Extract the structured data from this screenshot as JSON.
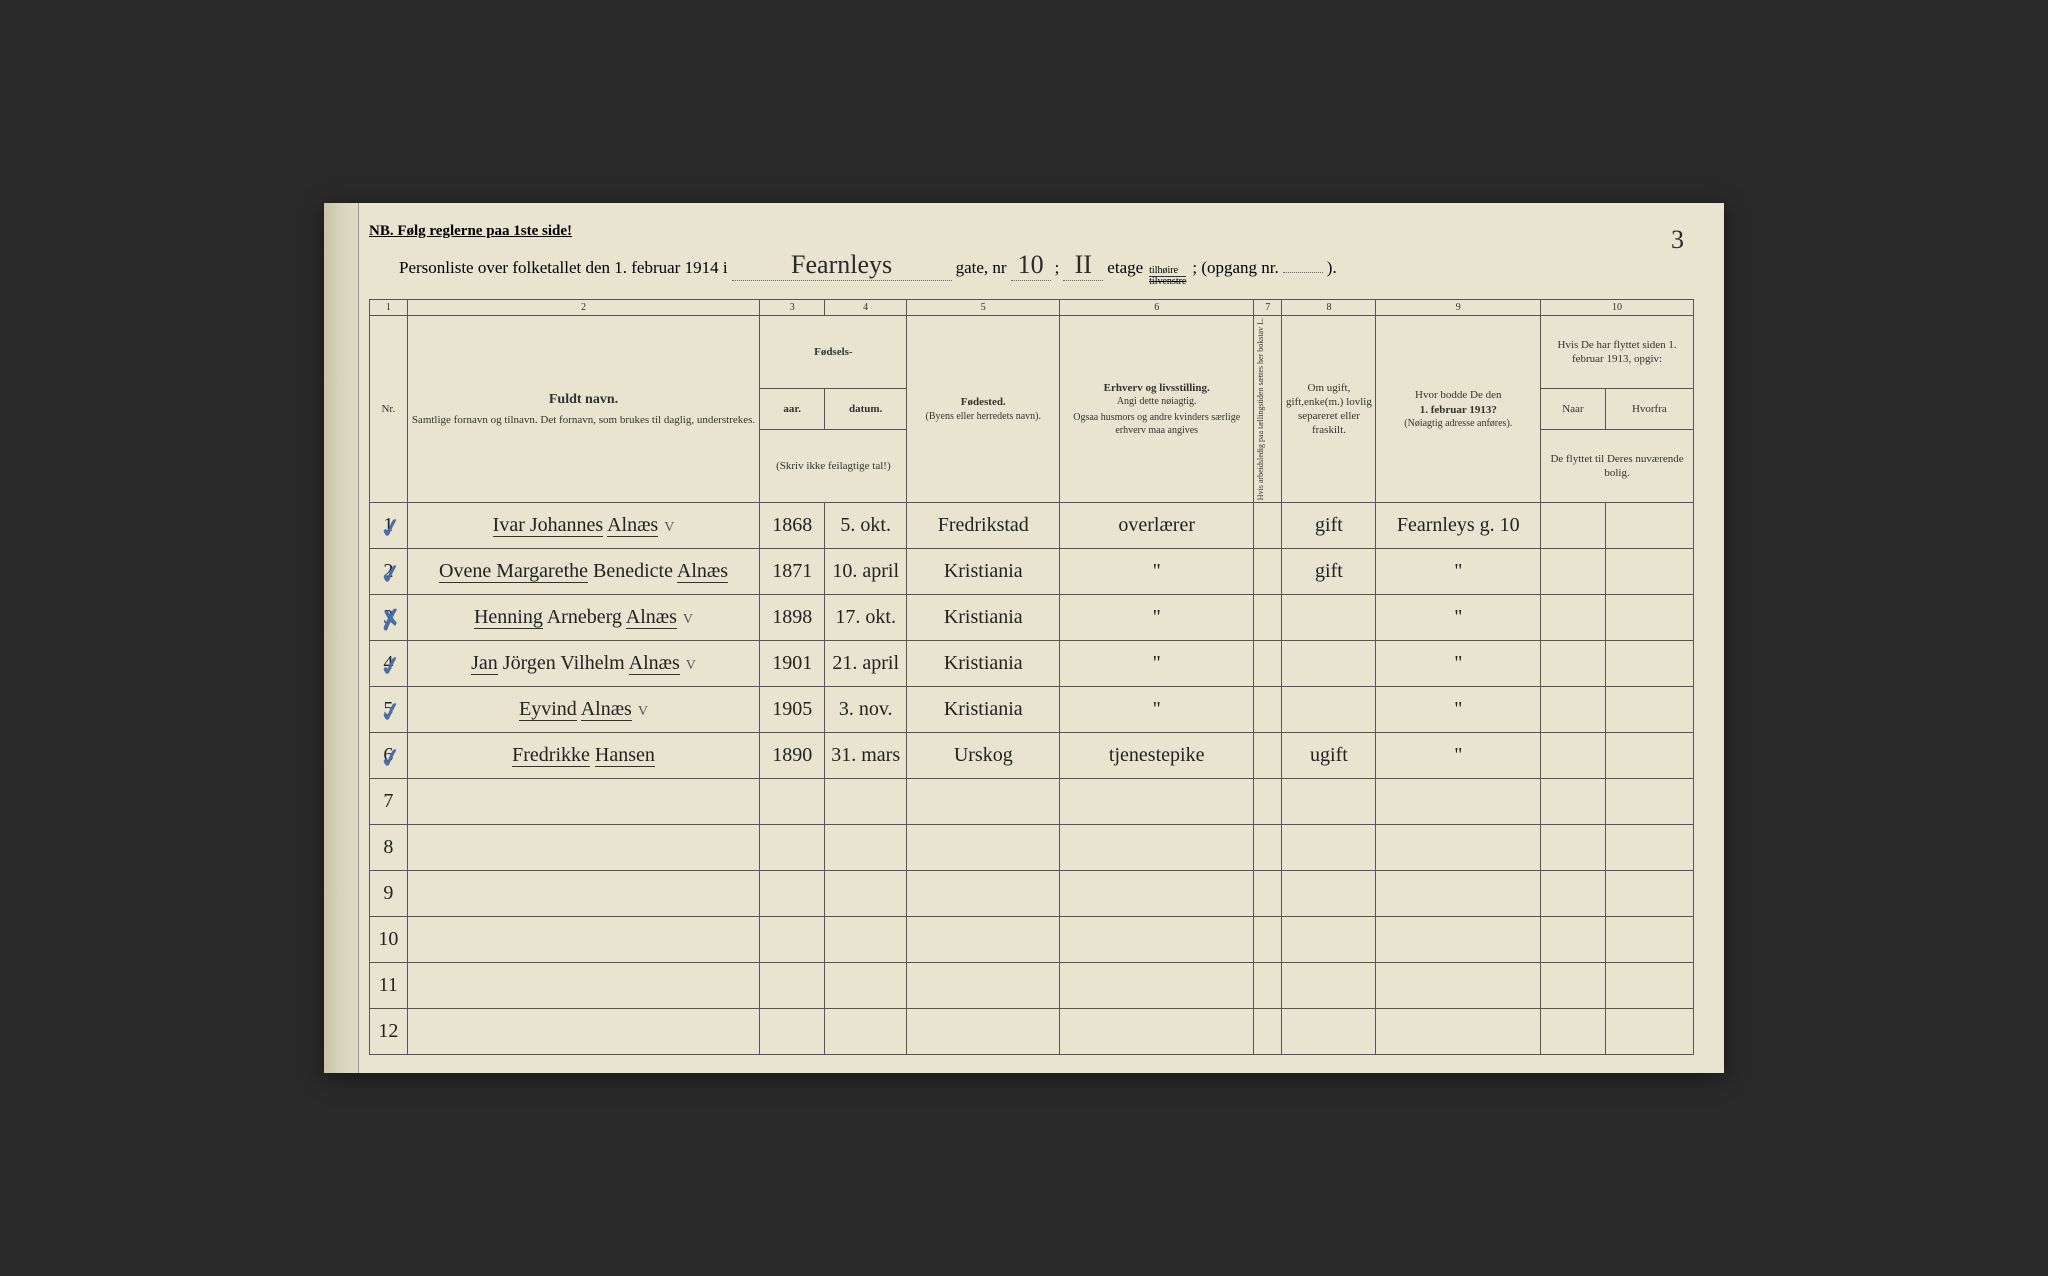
{
  "page_number": "3",
  "notice": "NB.  Følg reglerne paa 1ste side!",
  "header": {
    "prefix": "Personliste over folketallet den 1. februar 1914 i",
    "street": "Fearnleys",
    "gate_label": "gate, nr",
    "house_nr": "10",
    "semicolon": ";",
    "floor": "II",
    "etage_label": "etage",
    "tilhoire": "tilhøire",
    "tilvenstre": "tilvenstre",
    "opgang_label": "; (opgang nr.",
    "opgang_nr": "",
    "closing": ")."
  },
  "colnums": [
    "1",
    "2",
    "3",
    "4",
    "5",
    "6",
    "7",
    "8",
    "9",
    "10"
  ],
  "headers": {
    "nr": "Nr.",
    "name_top": "Fuldt navn.",
    "name_sub": "Samtlige fornavn og tilnavn.  Det fornavn, som brukes til daglig, understrekes.",
    "fodsels": "Fødsels-",
    "aar": "aar.",
    "datum": "datum.",
    "skriv_ikke": "(Skriv ikke feilagtige tal!)",
    "fodested": "Fødested.",
    "fodested_sub": "(Byens eller herredets navn).",
    "erhverv": "Erhverv og livsstilling.",
    "erhverv_sub1": "Angi dette nøiagtig.",
    "erhverv_sub2": "Ogsaa husmors og andre kvinders særlige erhverv maa angives",
    "col7": "Hvis arbeidsledig paa tællingstiden sættes her bokstav L.",
    "col8_top": "Om ugift, gift,enke(m.) lovlig separeret eller fraskilt.",
    "col9_top": "Hvor bodde De den",
    "col9_date": "1. februar 1913?",
    "col9_sub": "(Nøiagtig adresse anføres).",
    "col10_top": "Hvis De har flyttet siden 1. februar 1913, opgiv:",
    "col10_naar": "Naar",
    "col10_hvorfra": "Hvorfra",
    "col10_sub": "De flyttet til Deres nuværende bolig."
  },
  "rows": [
    {
      "n": "1",
      "check": true,
      "name_pre": "Ivar Johannes",
      "name_und": "Alnæs",
      "vmark": "V",
      "year": "1868",
      "date": "5. okt.",
      "place": "Fredrikstad",
      "occ": "overlærer",
      "c8": "gift",
      "c9": "Fearnleys g. 10"
    },
    {
      "n": "2",
      "check": true,
      "name_pre": "Ovene Margarethe",
      "name_mid": "Benedicte",
      "name_und": "Alnæs",
      "year": "1871",
      "date": "10. april",
      "place": "Kristiania",
      "occ": "\"",
      "c8": "gift",
      "c9": "\""
    },
    {
      "n": "3",
      "check": true,
      "cross": true,
      "name_pre": "Henning",
      "name_mid": "Arneberg",
      "name_und": "Alnæs",
      "vmark": "V",
      "year": "1898",
      "date": "17. okt.",
      "place": "Kristiania",
      "occ": "\"",
      "c8": "",
      "c9": "\""
    },
    {
      "n": "4",
      "check": true,
      "name_pre": "Jan",
      "name_mid": "Jörgen Vilhelm",
      "name_und": "Alnæs",
      "vmark": "V",
      "year": "1901",
      "date": "21. april",
      "place": "Kristiania",
      "occ": "\"",
      "c8": "",
      "c9": "\""
    },
    {
      "n": "5",
      "check": true,
      "name_pre": "Eyvind",
      "name_und": "Alnæs",
      "vmark": "V",
      "year": "1905",
      "date": "3. nov.",
      "place": "Kristiania",
      "occ": "\"",
      "c8": "",
      "c9": "\""
    },
    {
      "n": "6",
      "check": true,
      "name_pre": "Fredrikke",
      "name_und": "Hansen",
      "year": "1890",
      "date": "31. mars",
      "place": "Urskog",
      "occ": "tjenestepike",
      "c8": "ugift",
      "c9": "\""
    }
  ],
  "empty_rows": [
    "7",
    "8",
    "9",
    "10",
    "11",
    "12"
  ],
  "colors": {
    "paper": "#e8e4d0",
    "ink_print": "#333333",
    "ink_hand": "#2a2a2a",
    "check_blue": "#4a6fa8",
    "border": "#555555"
  }
}
